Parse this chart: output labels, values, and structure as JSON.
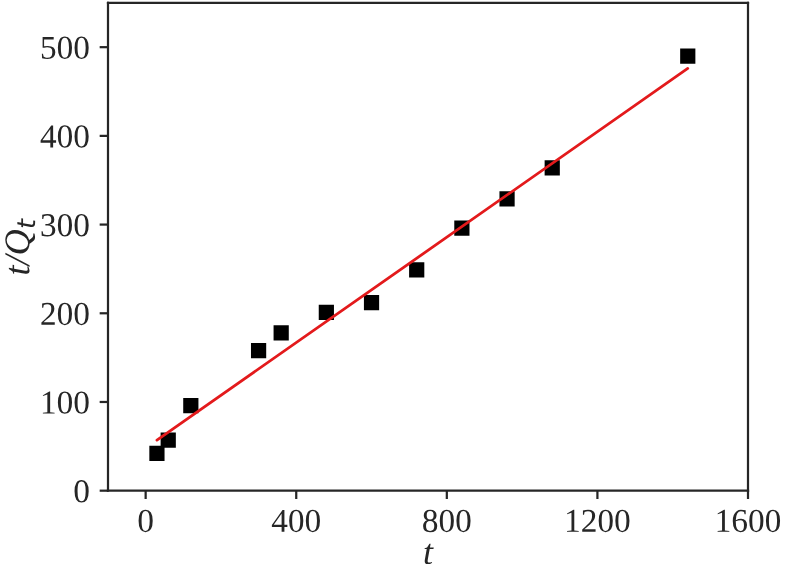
{
  "chart_data": {
    "type": "scatter",
    "xlabel": "t",
    "ylabel": "t/Q$_{t}$",
    "xlim": [
      -100,
      1600
    ],
    "xticks": [
      0,
      400,
      800,
      1200,
      1600
    ],
    "ylim": [
      0,
      550
    ],
    "yticks": [
      0,
      100,
      200,
      300,
      400,
      500
    ],
    "grid": false,
    "legend": false,
    "marker": "square",
    "series": [
      {
        "color": "#000000",
        "x": [
          30,
          60,
          120,
          300,
          360,
          480,
          600,
          720,
          840,
          960,
          1080,
          1440
        ],
        "values": [
          42,
          57,
          96,
          158,
          178,
          201,
          212,
          249,
          296,
          329,
          364,
          490
        ]
      },
      {
        "type": "line",
        "color": "#e31a1c",
        "line_style": "solid",
        "marker": "none",
        "x": [
          30,
          1440
        ],
        "values": [
          57,
          476
        ]
      }
    ]
  }
}
